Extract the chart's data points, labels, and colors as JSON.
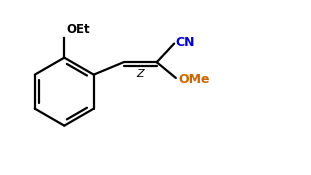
{
  "bg_color": "#ffffff",
  "line_color": "#000000",
  "lw": 1.6,
  "oet_label": "OEt",
  "cn_label": "CN",
  "ome_label": "OMe",
  "z_label": "Z",
  "cn_color": "#0000cc",
  "ome_color": "#cc6600",
  "figsize": [
    3.11,
    1.75
  ],
  "dpi": 100
}
